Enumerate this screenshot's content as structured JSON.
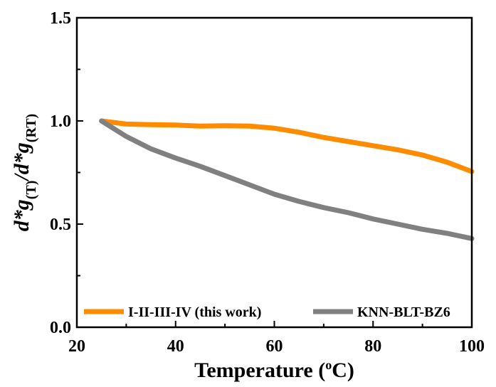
{
  "chart_data": {
    "type": "line",
    "xlabel": "Temperature (°C)",
    "xlabel_parts": {
      "main": "Temperature (",
      "sup": "o",
      "unit": "C)"
    },
    "ylabel_parts": {
      "a": "d*g",
      "a_sub": "(T)",
      "sep": "/",
      "b": "d*g",
      "b_sub": "(RT)"
    },
    "xlim": [
      20,
      100
    ],
    "ylim": [
      0.0,
      1.5
    ],
    "xticks": [
      20,
      40,
      60,
      80,
      100
    ],
    "yticks": [
      0.0,
      0.5,
      1.0,
      1.5
    ],
    "ytick_labels": [
      "0.0",
      "0.5",
      "1.0",
      "1.5"
    ],
    "grid": false,
    "legend_position": "bottom",
    "series": [
      {
        "name": "I-II-III-IV (this work)",
        "color": "#ff8c00",
        "x": [
          25,
          30,
          35,
          40,
          45,
          50,
          55,
          60,
          65,
          70,
          75,
          80,
          85,
          90,
          95,
          100
        ],
        "y": [
          1.0,
          0.985,
          0.982,
          0.98,
          0.975,
          0.977,
          0.975,
          0.965,
          0.945,
          0.92,
          0.9,
          0.88,
          0.86,
          0.835,
          0.8,
          0.755
        ]
      },
      {
        "name": "KNN-BLT-BZ6",
        "color": "#808080",
        "x": [
          25,
          30,
          35,
          40,
          45,
          50,
          55,
          60,
          65,
          70,
          75,
          80,
          85,
          90,
          95,
          100
        ],
        "y": [
          1.0,
          0.925,
          0.865,
          0.82,
          0.78,
          0.735,
          0.69,
          0.645,
          0.61,
          0.58,
          0.555,
          0.525,
          0.5,
          0.475,
          0.455,
          0.43
        ]
      }
    ]
  }
}
